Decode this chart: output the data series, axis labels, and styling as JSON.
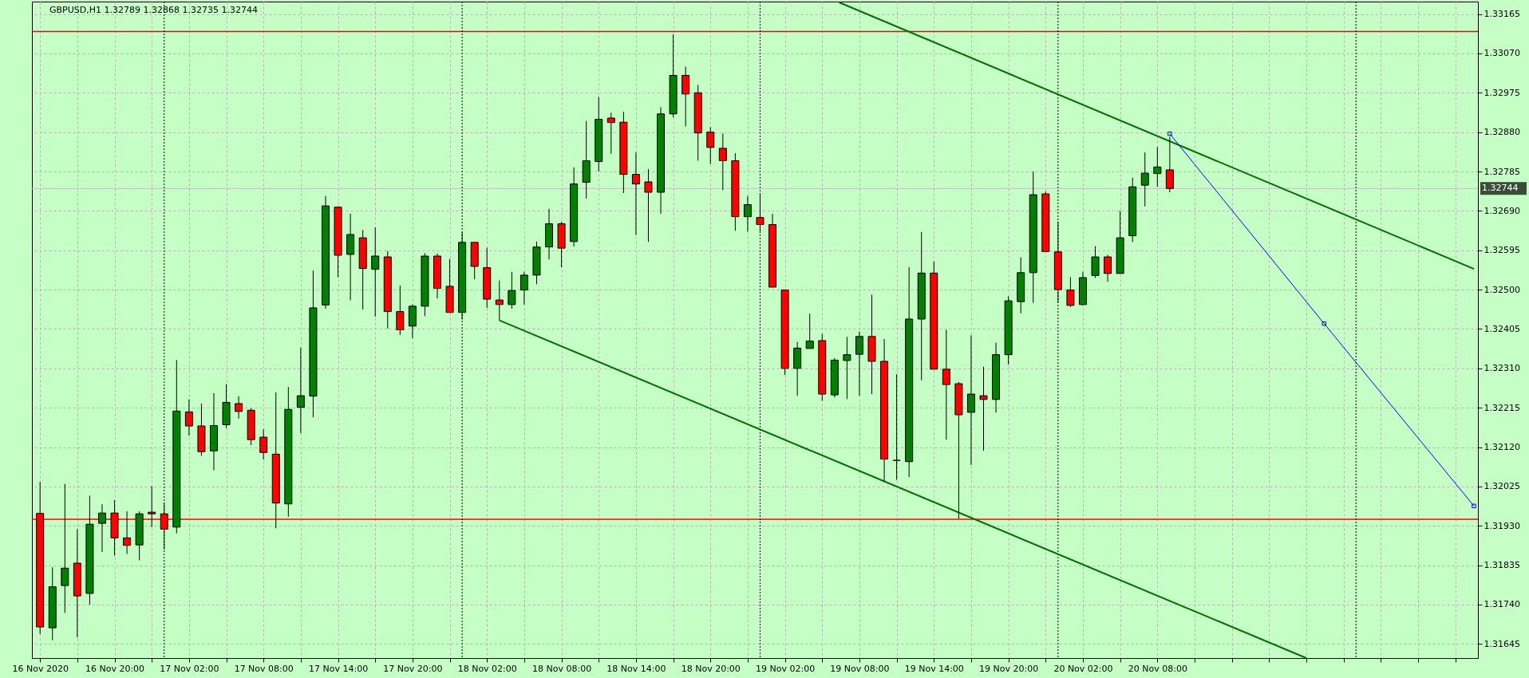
{
  "chart_data": {
    "type": "candlestick",
    "title": "GBPUSD,H1  1.32789 1.32868 1.32735 1.32744",
    "x": [
      "2020-11-16T14:00",
      "2020-11-16T15:00",
      "2020-11-16T16:00",
      "2020-11-16T17:00",
      "2020-11-16T18:00",
      "2020-11-16T19:00",
      "2020-11-16T20:00",
      "2020-11-16T21:00",
      "2020-11-16T22:00",
      "2020-11-16T23:00",
      "2020-11-17T00:00",
      "2020-11-17T01:00",
      "2020-11-17T02:00",
      "2020-11-17T03:00",
      "2020-11-17T04:00",
      "2020-11-17T05:00",
      "2020-11-17T06:00",
      "2020-11-17T07:00",
      "2020-11-17T08:00",
      "2020-11-17T09:00",
      "2020-11-17T10:00",
      "2020-11-17T11:00",
      "2020-11-17T12:00",
      "2020-11-17T13:00",
      "2020-11-17T14:00",
      "2020-11-17T15:00",
      "2020-11-17T16:00",
      "2020-11-17T17:00",
      "2020-11-17T18:00",
      "2020-11-17T19:00",
      "2020-11-17T20:00",
      "2020-11-17T21:00",
      "2020-11-17T22:00",
      "2020-11-17T23:00",
      "2020-11-18T00:00",
      "2020-11-18T01:00",
      "2020-11-18T02:00",
      "2020-11-18T03:00",
      "2020-11-18T04:00",
      "2020-11-18T05:00",
      "2020-11-18T06:00",
      "2020-11-18T07:00",
      "2020-11-18T08:00",
      "2020-11-18T09:00",
      "2020-11-18T10:00",
      "2020-11-18T11:00",
      "2020-11-18T12:00",
      "2020-11-18T13:00",
      "2020-11-18T14:00",
      "2020-11-18T15:00",
      "2020-11-18T16:00",
      "2020-11-18T17:00",
      "2020-11-18T18:00",
      "2020-11-18T19:00",
      "2020-11-18T20:00",
      "2020-11-18T21:00",
      "2020-11-18T22:00",
      "2020-11-18T23:00",
      "2020-11-19T00:00",
      "2020-11-19T01:00",
      "2020-11-19T02:00",
      "2020-11-19T03:00",
      "2020-11-19T04:00",
      "2020-11-19T05:00",
      "2020-11-19T06:00",
      "2020-11-19T07:00",
      "2020-11-19T08:00",
      "2020-11-19T09:00",
      "2020-11-19T10:00",
      "2020-11-19T11:00",
      "2020-11-19T12:00",
      "2020-11-19T13:00",
      "2020-11-19T14:00",
      "2020-11-19T15:00",
      "2020-11-19T16:00",
      "2020-11-19T17:00",
      "2020-11-19T18:00",
      "2020-11-19T19:00",
      "2020-11-19T20:00",
      "2020-11-19T21:00",
      "2020-11-19T22:00",
      "2020-11-19T23:00",
      "2020-11-20T00:00",
      "2020-11-20T01:00",
      "2020-11-20T02:00",
      "2020-11-20T03:00",
      "2020-11-20T04:00",
      "2020-11-20T05:00",
      "2020-11-20T06:00",
      "2020-11-20T07:00",
      "2020-11-20T08:00",
      "2020-11-20T09:00"
    ],
    "ohlc": [
      [
        1.3196,
        1.32036,
        1.31669,
        1.31686
      ],
      [
        1.31684,
        1.3183,
        1.31654,
        1.31783
      ],
      [
        1.31786,
        1.32031,
        1.3172,
        1.31828
      ],
      [
        1.3184,
        1.31922,
        1.31661,
        1.31761
      ],
      [
        1.31767,
        1.32003,
        1.3174,
        1.31934
      ],
      [
        1.31936,
        1.31982,
        1.31867,
        1.31961
      ],
      [
        1.31961,
        1.31992,
        1.31858,
        1.31901
      ],
      [
        1.31901,
        1.31965,
        1.31862,
        1.31883
      ],
      [
        1.31884,
        1.31965,
        1.31847,
        1.31959
      ],
      [
        1.31963,
        1.32026,
        1.31927,
        1.31959
      ],
      [
        1.31959,
        1.31985,
        1.31873,
        1.31922
      ],
      [
        1.31927,
        1.3233,
        1.31912,
        1.32207
      ],
      [
        1.32205,
        1.32235,
        1.32148,
        1.32171
      ],
      [
        1.32171,
        1.32225,
        1.32099,
        1.32109
      ],
      [
        1.32111,
        1.3225,
        1.32064,
        1.32172
      ],
      [
        1.32174,
        1.32272,
        1.32166,
        1.32228
      ],
      [
        1.32225,
        1.32243,
        1.32189,
        1.32206
      ],
      [
        1.32209,
        1.32214,
        1.32125,
        1.32138
      ],
      [
        1.32144,
        1.32163,
        1.3209,
        1.32107
      ],
      [
        1.32103,
        1.32252,
        1.31924,
        1.31985
      ],
      [
        1.31983,
        1.32265,
        1.31952,
        1.32211
      ],
      [
        1.32216,
        1.3236,
        1.32154,
        1.32244
      ],
      [
        1.32243,
        1.32546,
        1.32192,
        1.32456
      ],
      [
        1.32463,
        1.32726,
        1.32454,
        1.32702
      ],
      [
        1.32699,
        1.32701,
        1.3253,
        1.32583
      ],
      [
        1.32585,
        1.32683,
        1.32474,
        1.32633
      ],
      [
        1.32625,
        1.32644,
        1.32452,
        1.32551
      ],
      [
        1.32549,
        1.3265,
        1.32435,
        1.32581
      ],
      [
        1.32579,
        1.32593,
        1.32406,
        1.32447
      ],
      [
        1.32447,
        1.3251,
        1.32391,
        1.32403
      ],
      [
        1.32412,
        1.32464,
        1.32383,
        1.3246
      ],
      [
        1.3246,
        1.32588,
        1.32436,
        1.32581
      ],
      [
        1.32581,
        1.32587,
        1.32479,
        1.32503
      ],
      [
        1.32508,
        1.32574,
        1.32444,
        1.32445
      ],
      [
        1.32445,
        1.32639,
        1.32428,
        1.32614
      ],
      [
        1.32614,
        1.32614,
        1.32525,
        1.32556
      ],
      [
        1.32553,
        1.32601,
        1.32456,
        1.32477
      ],
      [
        1.32475,
        1.32522,
        1.32426,
        1.32464
      ],
      [
        1.32464,
        1.32543,
        1.32454,
        1.32498
      ],
      [
        1.32499,
        1.32543,
        1.32464,
        1.32535
      ],
      [
        1.32535,
        1.32616,
        1.32513,
        1.32603
      ],
      [
        1.32603,
        1.32695,
        1.32573,
        1.32659
      ],
      [
        1.32659,
        1.32664,
        1.32554,
        1.326
      ],
      [
        1.32616,
        1.32795,
        1.32604,
        1.32755
      ],
      [
        1.32759,
        1.32907,
        1.3272,
        1.32811
      ],
      [
        1.32809,
        1.32965,
        1.32785,
        1.32911
      ],
      [
        1.32914,
        1.32927,
        1.32828,
        1.32903
      ],
      [
        1.32904,
        1.32929,
        1.32733,
        1.32778
      ],
      [
        1.32778,
        1.32831,
        1.32632,
        1.32755
      ],
      [
        1.3276,
        1.32791,
        1.32615,
        1.32735
      ],
      [
        1.32735,
        1.3294,
        1.32683,
        1.32924
      ],
      [
        1.32924,
        1.33116,
        1.32916,
        1.33017
      ],
      [
        1.33017,
        1.33038,
        1.32894,
        1.32972
      ],
      [
        1.32975,
        1.32994,
        1.32811,
        1.32878
      ],
      [
        1.3288,
        1.32892,
        1.32803,
        1.32843
      ],
      [
        1.32841,
        1.32877,
        1.3274,
        1.32811
      ],
      [
        1.32811,
        1.32829,
        1.32642,
        1.32676
      ],
      [
        1.32676,
        1.32726,
        1.3264,
        1.32705
      ],
      [
        1.32674,
        1.32732,
        1.32636,
        1.32657
      ],
      [
        1.32657,
        1.32683,
        1.32506,
        1.32506
      ],
      [
        1.32499,
        1.32499,
        1.32294,
        1.3231
      ],
      [
        1.3231,
        1.32374,
        1.32244,
        1.32359
      ],
      [
        1.32358,
        1.32442,
        1.32358,
        1.32376
      ],
      [
        1.32377,
        1.32393,
        1.32232,
        1.32248
      ],
      [
        1.32246,
        1.32335,
        1.3224,
        1.3233
      ],
      [
        1.32329,
        1.32386,
        1.32236,
        1.32343
      ],
      [
        1.32344,
        1.32399,
        1.32244,
        1.32387
      ],
      [
        1.32387,
        1.32488,
        1.32248,
        1.32327
      ],
      [
        1.32327,
        1.32381,
        1.32038,
        1.32091
      ],
      [
        1.32088,
        1.32296,
        1.32041,
        1.32088
      ],
      [
        1.32085,
        1.32554,
        1.32048,
        1.32429
      ],
      [
        1.32429,
        1.32639,
        1.32281,
        1.3254
      ],
      [
        1.3254,
        1.32568,
        1.32308,
        1.32308
      ],
      [
        1.32308,
        1.32403,
        1.32138,
        1.32271
      ],
      [
        1.32273,
        1.32277,
        1.31947,
        1.32198
      ],
      [
        1.32204,
        1.3239,
        1.32077,
        1.32248
      ],
      [
        1.32244,
        1.32314,
        1.32111,
        1.32235
      ],
      [
        1.32235,
        1.32372,
        1.32203,
        1.32343
      ],
      [
        1.32343,
        1.32484,
        1.32319,
        1.32473
      ],
      [
        1.32471,
        1.32578,
        1.32443,
        1.32541
      ],
      [
        1.32541,
        1.32785,
        1.32468,
        1.32729
      ],
      [
        1.32731,
        1.32737,
        1.32592,
        1.32592
      ],
      [
        1.32591,
        1.32663,
        1.32469,
        1.325
      ],
      [
        1.32499,
        1.3253,
        1.32458,
        1.32462
      ],
      [
        1.32464,
        1.32543,
        1.32462,
        1.32529
      ],
      [
        1.32534,
        1.32605,
        1.32528,
        1.32579
      ],
      [
        1.32579,
        1.32584,
        1.32519,
        1.32539
      ],
      [
        1.32539,
        1.3269,
        1.32539,
        1.32625
      ],
      [
        1.3263,
        1.3277,
        1.32615,
        1.32748
      ],
      [
        1.32752,
        1.32831,
        1.32701,
        1.32781
      ],
      [
        1.3278,
        1.32844,
        1.32748,
        1.32796
      ],
      [
        1.32789,
        1.32868,
        1.32735,
        1.32744
      ]
    ],
    "colors": [
      "#ff0000",
      "#008000",
      "#008000",
      "#ff0000",
      "#008000",
      "#008000",
      "#ff0000",
      "#ff0000",
      "#008000",
      "#ff0000",
      "#ff0000",
      "#008000",
      "#ff0000",
      "#ff0000",
      "#008000",
      "#008000",
      "#ff0000",
      "#ff0000",
      "#ff0000",
      "#ff0000",
      "#008000",
      "#008000",
      "#008000",
      "#008000",
      "#ff0000",
      "#008000",
      "#ff0000",
      "#008000",
      "#ff0000",
      "#ff0000",
      "#008000",
      "#008000",
      "#ff0000",
      "#ff0000",
      "#008000",
      "#ff0000",
      "#ff0000",
      "#ff0000",
      "#008000",
      "#008000",
      "#008000",
      "#008000",
      "#ff0000",
      "#008000",
      "#008000",
      "#008000",
      "#ff0000",
      "#ff0000",
      "#ff0000",
      "#ff0000",
      "#008000",
      "#008000",
      "#ff0000",
      "#ff0000",
      "#ff0000",
      "#ff0000",
      "#ff0000",
      "#008000",
      "#ff0000",
      "#ff0000",
      "#ff0000",
      "#008000",
      "#008000",
      "#ff0000",
      "#008000",
      "#008000",
      "#008000",
      "#ff0000",
      "#ff0000",
      "#000000",
      "#008000",
      "#008000",
      "#ff0000",
      "#ff0000",
      "#ff0000",
      "#008000",
      "#ff0000",
      "#008000",
      "#008000",
      "#008000",
      "#008000",
      "#ff0000",
      "#ff0000",
      "#ff0000",
      "#008000",
      "#008000",
      "#ff0000",
      "#008000",
      "#008000",
      "#008000",
      "#008000",
      "#ff0000"
    ],
    "series": [
      {
        "type": "line",
        "color": "#007000",
        "x": [
          "2020-11-19T06:22",
          "2020-11-21T09:30"
        ],
        "values": [
          1.33193,
          1.3255
        ]
      },
      {
        "type": "line",
        "color": "#007000",
        "x": [
          "2020-11-18T03:00",
          "2020-11-20T20:00"
        ],
        "values": [
          1.32426,
          1.31611
        ]
      },
      {
        "type": "line",
        "color": "#0000ff",
        "marker": "square",
        "x": [
          "2020-11-20T09:00",
          "2020-11-20T21:26",
          "2020-11-21T09:30"
        ],
        "values": [
          1.32876,
          1.32418,
          1.31978
        ]
      }
    ],
    "ref_lines": [
      {
        "axis": "y",
        "value": 1.33123,
        "color": "#ff0000"
      },
      {
        "axis": "y",
        "value": 1.31946,
        "color": "#ff0000"
      },
      {
        "axis": "y",
        "value": 1.32744,
        "label": "1.32744",
        "color": "#c0c0c0"
      },
      {
        "axis": "x",
        "value": "2020-11-17T00:00",
        "color": "#000000",
        "line_style": "dotted"
      },
      {
        "axis": "x",
        "value": "2020-11-18T00:00",
        "color": "#000000",
        "line_style": "dotted"
      },
      {
        "axis": "x",
        "value": "2020-11-19T00:00",
        "color": "#000000",
        "line_style": "dotted"
      },
      {
        "axis": "x",
        "value": "2020-11-20T00:00",
        "color": "#000000",
        "line_style": "dotted"
      },
      {
        "axis": "x",
        "value": "2020-11-21T00:00",
        "color": "#000000",
        "line_style": "dotted"
      }
    ],
    "xlim": [
      "2020-11-16T13:40",
      "2020-11-21T09:30"
    ],
    "ylim": [
      1.31611,
      1.33195
    ],
    "xticks": [
      {
        "value": "2020-11-16T14:00",
        "label": "16 Nov 2020"
      },
      {
        "value": "2020-11-16T17:00",
        "label": null
      },
      {
        "value": "2020-11-16T20:00",
        "label": "16 Nov 20:00"
      },
      {
        "value": "2020-11-16T23:00",
        "label": null
      },
      {
        "value": "2020-11-17T02:00",
        "label": "17 Nov 02:00"
      },
      {
        "value": "2020-11-17T05:00",
        "label": null
      },
      {
        "value": "2020-11-17T08:00",
        "label": "17 Nov 08:00"
      },
      {
        "value": "2020-11-17T11:00",
        "label": null
      },
      {
        "value": "2020-11-17T14:00",
        "label": "17 Nov 14:00"
      },
      {
        "value": "2020-11-17T17:00",
        "label": null
      },
      {
        "value": "2020-11-17T20:00",
        "label": "17 Nov 20:00"
      },
      {
        "value": "2020-11-17T23:00",
        "label": null
      },
      {
        "value": "2020-11-18T02:00",
        "label": "18 Nov 02:00"
      },
      {
        "value": "2020-11-18T05:00",
        "label": null
      },
      {
        "value": "2020-11-18T08:00",
        "label": "18 Nov 08:00"
      },
      {
        "value": "2020-11-18T11:00",
        "label": null
      },
      {
        "value": "2020-11-18T14:00",
        "label": "18 Nov 14:00"
      },
      {
        "value": "2020-11-18T17:00",
        "label": null
      },
      {
        "value": "2020-11-18T20:00",
        "label": "18 Nov 20:00"
      },
      {
        "value": "2020-11-18T23:00",
        "label": null
      },
      {
        "value": "2020-11-19T02:00",
        "label": "19 Nov 02:00"
      },
      {
        "value": "2020-11-19T05:00",
        "label": null
      },
      {
        "value": "2020-11-19T08:00",
        "label": "19 Nov 08:00"
      },
      {
        "value": "2020-11-19T11:00",
        "label": null
      },
      {
        "value": "2020-11-19T14:00",
        "label": "19 Nov 14:00"
      },
      {
        "value": "2020-11-19T17:00",
        "label": null
      },
      {
        "value": "2020-11-19T20:00",
        "label": "19 Nov 20:00"
      },
      {
        "value": "2020-11-19T23:00",
        "label": null
      },
      {
        "value": "2020-11-20T02:00",
        "label": "20 Nov 02:00"
      },
      {
        "value": "2020-11-20T05:00",
        "label": null
      },
      {
        "value": "2020-11-20T08:00",
        "label": "20 Nov 08:00"
      },
      {
        "value": "2020-11-20T11:00",
        "label": null
      },
      {
        "value": "2020-11-20T14:00",
        "label": null
      },
      {
        "value": "2020-11-20T17:00",
        "label": null
      },
      {
        "value": "2020-11-20T20:00",
        "label": null
      },
      {
        "value": "2020-11-20T23:00",
        "label": null
      },
      {
        "value": "2020-11-21T02:00",
        "label": null
      },
      {
        "value": "2020-11-21T05:00",
        "label": null
      },
      {
        "value": "2020-11-21T08:00",
        "label": null
      }
    ],
    "yticks": [
      1.33165,
      {
        "value": 1.3307,
        "label": "1.33070"
      },
      1.32975,
      {
        "value": 1.3288,
        "label": "1.32880"
      },
      1.32785,
      {
        "value": 1.3269,
        "label": "1.32690"
      },
      1.32595,
      {
        "value": 1.325,
        "label": "1.32500"
      },
      1.32405,
      {
        "value": 1.3231,
        "label": "1.32310"
      },
      1.32215,
      {
        "value": 1.3212,
        "label": "1.32120"
      },
      1.32025,
      {
        "value": 1.3193,
        "label": "1.31930"
      },
      1.31835,
      {
        "value": 1.3174,
        "label": "1.31740"
      },
      1.31645
    ],
    "grid": true
  }
}
